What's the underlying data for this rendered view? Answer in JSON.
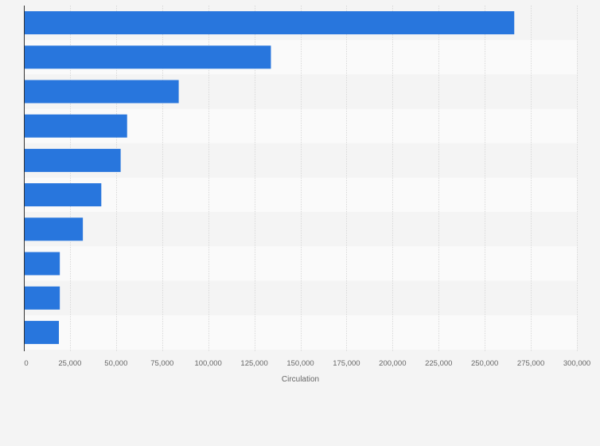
{
  "chart_data": {
    "type": "bar",
    "orientation": "horizontal",
    "categories": [
      "",
      "",
      "",
      "",
      "",
      "",
      "",
      "",
      "",
      ""
    ],
    "values": [
      266000,
      134000,
      84000,
      56000,
      52500,
      42000,
      32000,
      19500,
      19500,
      19000
    ],
    "title": "",
    "xlabel": "Circulation",
    "ylabel": "",
    "xlim": [
      0,
      300000
    ],
    "xticks": [
      0,
      25000,
      50000,
      75000,
      100000,
      125000,
      150000,
      175000,
      200000,
      225000,
      250000,
      275000,
      300000
    ],
    "xtick_labels": [
      "0",
      "25,000",
      "50,000",
      "75,000",
      "100,000",
      "125,000",
      "150,000",
      "175,000",
      "200,000",
      "225,000",
      "250,000",
      "275,000",
      "300,000"
    ],
    "grid": true,
    "legend": "none",
    "colors": {
      "bar": "#2876dd",
      "plot_band_a": "#f4f4f4",
      "plot_band_b": "#fafafa",
      "grid": "#d9d9d9",
      "axis": "#333333",
      "text": "#666666"
    }
  }
}
